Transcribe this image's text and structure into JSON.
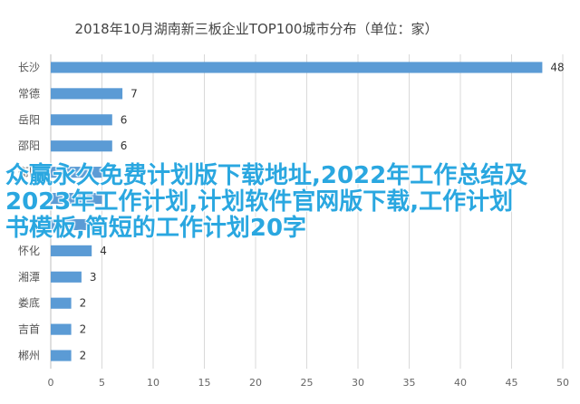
{
  "chart_data": {
    "type": "bar",
    "orientation": "horizontal",
    "title": "2018年10月湖南新三板企业TOP100城市分布（单位：家）",
    "categories": [
      "长沙",
      "常德",
      "岳阳",
      "邵阳",
      "衡阳",
      "株洲",
      "湘潭",
      "怀化",
      "湘潭",
      "娄底",
      "吉首",
      "郴州"
    ],
    "category_labels": [
      "长沙",
      "常德",
      "岳阳",
      "邵阳",
      "衡阳",
      "",
      "",
      "怀化",
      "湘潭",
      "娄底",
      "吉首",
      "郴州"
    ],
    "values": [
      48,
      7,
      6,
      6,
      5,
      5,
      4,
      4,
      3,
      2,
      2,
      2
    ],
    "value_labels": [
      "48",
      "7",
      "6",
      "6",
      "",
      "",
      "4",
      "4",
      "3",
      "2",
      "2",
      "2"
    ],
    "xlim": [
      0,
      50
    ],
    "xticks": [
      "0",
      "5",
      "10",
      "15",
      "20",
      "25",
      "30",
      "35",
      "40",
      "45",
      "50"
    ],
    "grid": true,
    "bar_color": "#5b9bd5"
  },
  "overlay_text": "众赢永久免费计划版下载地址,2022年工作总结及2023年工作计划,计划软件官网版下载,工作计划书模板,简短的工作计划20字"
}
